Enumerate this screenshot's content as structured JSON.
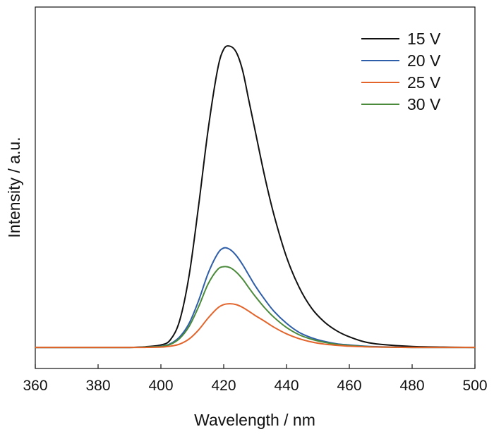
{
  "chart_data": {
    "type": "line",
    "xlabel": "Wavelength / nm",
    "ylabel": "Intensity / a.u.",
    "xlim": [
      360,
      500
    ],
    "ylim": [
      -0.07,
      1.13
    ],
    "xticks": [
      360,
      380,
      400,
      420,
      440,
      460,
      480,
      500
    ],
    "grid": false,
    "legend_position": "top-right",
    "x": [
      360,
      370,
      380,
      390,
      395,
      400,
      403,
      406,
      409,
      412,
      415,
      418,
      420,
      422,
      424,
      426,
      428,
      430,
      433,
      436,
      440,
      444,
      448,
      452,
      456,
      460,
      465,
      470,
      480,
      490,
      500
    ],
    "series": [
      {
        "name": "15 V",
        "color": "#111111",
        "values": [
          0,
          0,
          0,
          0,
          0.002,
          0.008,
          0.025,
          0.09,
          0.24,
          0.47,
          0.72,
          0.92,
          0.99,
          1.0,
          0.98,
          0.92,
          0.82,
          0.72,
          0.57,
          0.44,
          0.3,
          0.2,
          0.13,
          0.085,
          0.055,
          0.035,
          0.018,
          0.01,
          0.003,
          0.001,
          0
        ]
      },
      {
        "name": "20 V",
        "color": "#2f5ea8",
        "values": [
          0,
          0,
          0,
          0,
          0.001,
          0.004,
          0.012,
          0.035,
          0.08,
          0.155,
          0.245,
          0.31,
          0.33,
          0.325,
          0.305,
          0.275,
          0.24,
          0.205,
          0.16,
          0.12,
          0.08,
          0.05,
          0.032,
          0.02,
          0.012,
          0.008,
          0.004,
          0.002,
          0,
          0,
          0
        ]
      },
      {
        "name": "25 V",
        "color": "#e2642b",
        "values": [
          0,
          0,
          0,
          0,
          0,
          0.001,
          0.004,
          0.011,
          0.028,
          0.058,
          0.097,
          0.13,
          0.142,
          0.145,
          0.142,
          0.133,
          0.12,
          0.106,
          0.087,
          0.067,
          0.045,
          0.029,
          0.018,
          0.011,
          0.007,
          0.004,
          0.002,
          0.001,
          0,
          0,
          0
        ]
      },
      {
        "name": "30 V",
        "color": "#4a8a3a",
        "values": [
          0,
          0,
          0,
          0,
          0.001,
          0.003,
          0.01,
          0.03,
          0.07,
          0.135,
          0.21,
          0.258,
          0.268,
          0.265,
          0.25,
          0.227,
          0.198,
          0.17,
          0.132,
          0.1,
          0.066,
          0.042,
          0.027,
          0.017,
          0.01,
          0.006,
          0.003,
          0.001,
          0,
          0,
          0
        ]
      }
    ]
  }
}
